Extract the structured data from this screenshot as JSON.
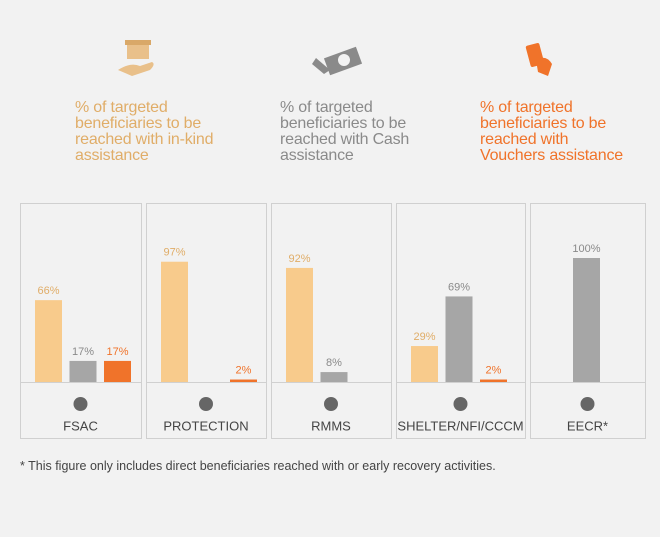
{
  "chart_data": {
    "type": "bar",
    "categories": [
      "FSAC",
      "PROTECTION",
      "RMMS",
      "SHELTER/NFI/CCCM",
      "EECR*"
    ],
    "series": [
      {
        "name": "% of targeted beneficiaries to be reached with in-kind assistance",
        "color": "#f8cb8c",
        "label_color": "#e0ad68",
        "values": [
          66,
          97,
          92,
          29,
          null
        ],
        "value_labels": [
          "66%",
          "97%",
          "92%",
          "29%",
          null
        ]
      },
      {
        "name": "% of targeted beneficiaries to be reached with Cash assistance",
        "color": "#a6a6a6",
        "label_color": "#8a8a8a",
        "values": [
          17,
          null,
          8,
          69,
          100
        ],
        "value_labels": [
          "17%",
          null,
          "8%",
          "69%",
          "100%"
        ]
      },
      {
        "name": "% of targeted beneficiaries to be reached with Vouchers assistance",
        "color": "#f0732a",
        "label_color": "#f0732a",
        "values": [
          17,
          2,
          null,
          2,
          null
        ],
        "value_labels": [
          "17%",
          "2%",
          null,
          "2%",
          null
        ]
      }
    ],
    "ylim": [
      0,
      100
    ],
    "footnote": "* This figure only includes direct beneficiaries reached with or early recovery activities."
  }
}
